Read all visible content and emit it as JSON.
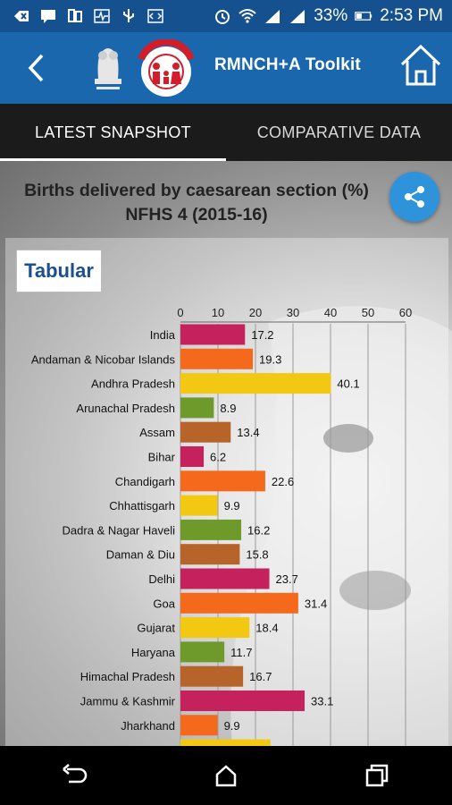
{
  "status_bar": {
    "battery": "33%",
    "time": "2:53 PM",
    "icons": [
      "back-arrow-icon",
      "chat-icon",
      "dual-sim-icon",
      "pulse-icon",
      "usb-icon",
      "code-icon",
      "alarm-icon",
      "wifi-icon",
      "signal-icon",
      "signal-icon",
      "battery-icon"
    ]
  },
  "app_bar": {
    "title": "RMNCH+A Toolkit",
    "logo_text": "NATIONAL HEALTH MISSION"
  },
  "tabs": [
    {
      "label": "LATEST SNAPSHOT",
      "active": true
    },
    {
      "label": "COMPARATIVE DATA",
      "active": false
    }
  ],
  "header": {
    "title_line1": "Births delivered by caesarean section (%)",
    "title_line2": "NFHS 4 (2015-16)"
  },
  "toggle_label": "Tabular",
  "chart_data": {
    "type": "bar",
    "orientation": "horizontal",
    "xlim": [
      0,
      60
    ],
    "ticks": [
      0,
      10,
      20,
      30,
      40,
      50,
      60
    ],
    "categories": [
      "India",
      "Andaman & Nicobar Islands",
      "Andhra Pradesh",
      "Arunachal Pradesh",
      "Assam",
      "Bihar",
      "Chandigarh",
      "Chhattisgarh",
      "Dadra & Nagar Haveli",
      "Daman & Diu",
      "Delhi",
      "Goa",
      "Gujarat",
      "Haryana",
      "Himachal Pradesh",
      "Jammu & Kashmir",
      "Jharkhand"
    ],
    "values": [
      17.2,
      19.3,
      40.1,
      8.9,
      13.4,
      6.2,
      22.6,
      9.9,
      16.2,
      15.8,
      23.7,
      31.4,
      18.4,
      11.7,
      16.7,
      33.1,
      9.9
    ],
    "colors": [
      "#c4215d",
      "#f5691d",
      "#f3c813",
      "#6e9a2c",
      "#b7642a",
      "#c4215d",
      "#f5691d",
      "#f3c813",
      "#6e9a2c",
      "#b7642a",
      "#c4215d",
      "#f5691d",
      "#f3c813",
      "#6e9a2c",
      "#b7642a",
      "#c4215d",
      "#f5691d"
    ],
    "partial_next_color": "#f3c813"
  }
}
